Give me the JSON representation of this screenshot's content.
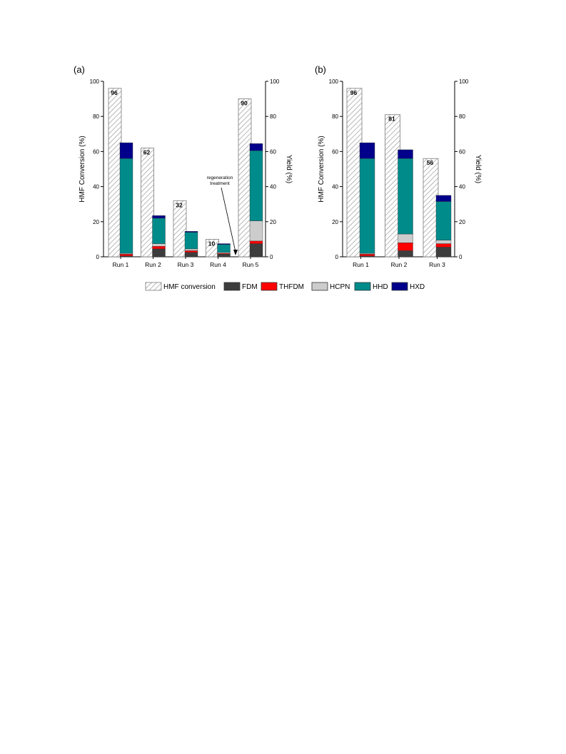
{
  "colors": {
    "hmf_outline": "#7a7a7a",
    "FDM": "#3d3d3d",
    "THFDM": "#ff0000",
    "HCPN": "#cccccc",
    "HHD": "#008b8b",
    "HXD": "#00008b"
  },
  "legend": {
    "items": [
      {
        "label": "HMF conversion",
        "key": "HMF"
      },
      {
        "label": "FDM",
        "key": "FDM"
      },
      {
        "label": "THFDM",
        "key": "THFDM"
      },
      {
        "label": "HCPN",
        "key": "HCPN"
      },
      {
        "label": "HHD",
        "key": "HHD"
      },
      {
        "label": "HXD",
        "key": "HXD"
      }
    ]
  },
  "chart_data": [
    {
      "type": "bar",
      "panel_label": "(a)",
      "ylabel": "HMF Conversion (%)",
      "y2label": "Yield (%)",
      "ylim": [
        0,
        100
      ],
      "yticks": [
        0,
        20,
        40,
        60,
        80,
        100
      ],
      "categories": [
        "Run 1",
        "Run 2",
        "Run 3",
        "Run 4",
        "Run 5"
      ],
      "conversion": [
        96,
        62,
        32,
        10,
        90
      ],
      "conversion_labels": [
        "96",
        "62",
        "32",
        "10",
        "90"
      ],
      "yield_series": [
        {
          "name": "FDM",
          "values": [
            0.5,
            4.5,
            2.5,
            1.5,
            7.5
          ]
        },
        {
          "name": "THFDM",
          "values": [
            1.0,
            1.5,
            1.0,
            0.5,
            1.5
          ]
        },
        {
          "name": "HCPN",
          "values": [
            0.5,
            1.5,
            1.0,
            0.5,
            11.5
          ]
        },
        {
          "name": "HHD",
          "values": [
            54,
            14.5,
            9.5,
            4.5,
            40
          ]
        },
        {
          "name": "HXD",
          "values": [
            9,
            1.5,
            0.5,
            0.5,
            4
          ]
        }
      ],
      "annotation": {
        "lines": [
          "regeneration",
          "treatment"
        ]
      }
    },
    {
      "type": "bar",
      "panel_label": "(b)",
      "ylabel": "HMF Conversion (%)",
      "y2label": "Yield (%)",
      "ylim": [
        0,
        100
      ],
      "yticks": [
        0,
        20,
        40,
        60,
        80,
        100
      ],
      "categories": [
        "Run 1",
        "Run 2",
        "Run 3"
      ],
      "conversion": [
        96,
        81,
        56
      ],
      "conversion_labels": [
        "96",
        "81",
        "56"
      ],
      "yield_series": [
        {
          "name": "FDM",
          "values": [
            0.5,
            3.5,
            5.5
          ]
        },
        {
          "name": "THFDM",
          "values": [
            1.0,
            4.5,
            2
          ]
        },
        {
          "name": "HCPN",
          "values": [
            0.5,
            5,
            2
          ]
        },
        {
          "name": "HHD",
          "values": [
            54,
            43,
            22
          ]
        },
        {
          "name": "HXD",
          "values": [
            9,
            5,
            3.5
          ]
        }
      ]
    }
  ]
}
